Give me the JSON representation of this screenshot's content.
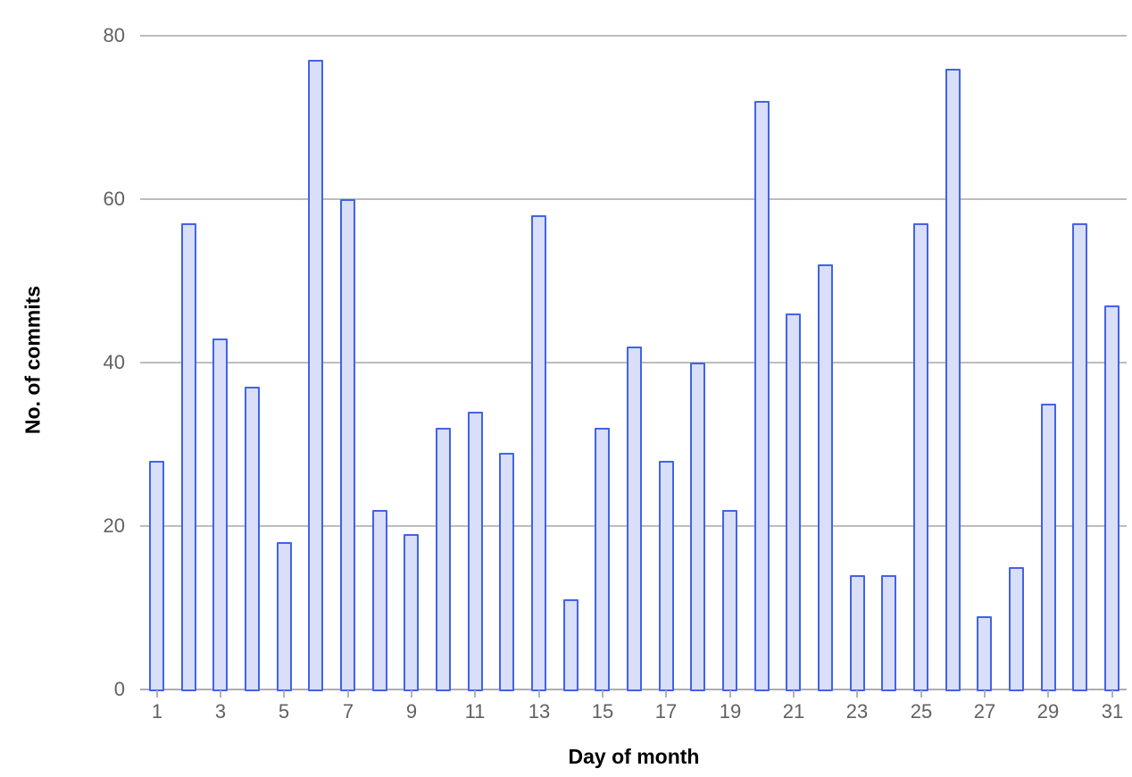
{
  "chart_data": {
    "type": "bar",
    "categories": [
      1,
      2,
      3,
      4,
      5,
      6,
      7,
      8,
      9,
      10,
      11,
      12,
      13,
      14,
      15,
      16,
      17,
      18,
      19,
      20,
      21,
      22,
      23,
      24,
      25,
      26,
      27,
      28,
      29,
      30,
      31
    ],
    "values": [
      28,
      57,
      43,
      37,
      18,
      77,
      60,
      22,
      19,
      32,
      34,
      29,
      58,
      11,
      32,
      42,
      28,
      40,
      22,
      72,
      46,
      52,
      14,
      14,
      57,
      76,
      9,
      15,
      35,
      57,
      47
    ],
    "xlabel": "Day of month",
    "ylabel": "No. of commits",
    "ylim": [
      0,
      80
    ],
    "yticks": [
      0,
      20,
      40,
      60,
      80
    ],
    "xtick_labels": [
      1,
      3,
      5,
      7,
      9,
      11,
      13,
      15,
      17,
      19,
      21,
      23,
      25,
      27,
      29,
      31
    ],
    "grid": true,
    "legend": false,
    "colors": {
      "bar_fill": "#d9def9",
      "bar_border": "#4263e6",
      "gridline": "#bcbcbc",
      "axis_line": "#adadad",
      "tick_mark": "#b3b3b3",
      "tick_label": "#616161",
      "axis_title": "#2b2b2b",
      "background": "#ffffff"
    }
  }
}
